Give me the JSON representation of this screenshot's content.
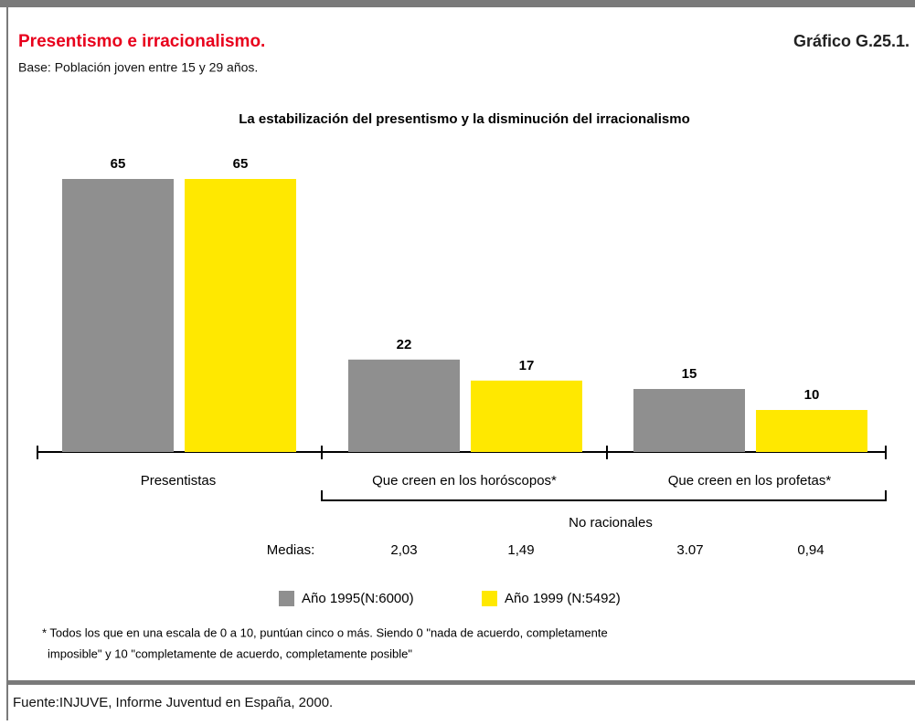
{
  "header": {
    "title": "Presentismo e irracionalismo.",
    "figure": "Gráfico G.25.1.",
    "base": "Base: Población joven entre 15 y 29 años."
  },
  "chart_data": {
    "type": "bar",
    "title": "La estabilización del presentismo y la disminución del irracionalismo",
    "categories": [
      "Presentistas",
      "Que creen en los horóscopos*",
      "Que creen en los profetas*"
    ],
    "series": [
      {
        "name": "Año 1995(N:6000)",
        "color": "#8f8f8f",
        "values": [
          65,
          22,
          15
        ]
      },
      {
        "name": "Año 1999 (N:5492)",
        "color": "#ffe800",
        "values": [
          65,
          17,
          10
        ]
      }
    ],
    "group_label": "No racionales",
    "medias": {
      "label": "Medias:",
      "values": [
        "2,03",
        "1,49",
        "3.07",
        "0,94"
      ]
    }
  },
  "footnote": [
    "* Todos los que en una escala de 0 a 10, puntúan cinco o más. Siendo 0 \"nada de acuerdo, completamente",
    "imposible\" y 10 \"completamente de acuerdo, completamente posible\""
  ],
  "source": "Fuente:INJUVE, Informe Juventud en España, 2000."
}
